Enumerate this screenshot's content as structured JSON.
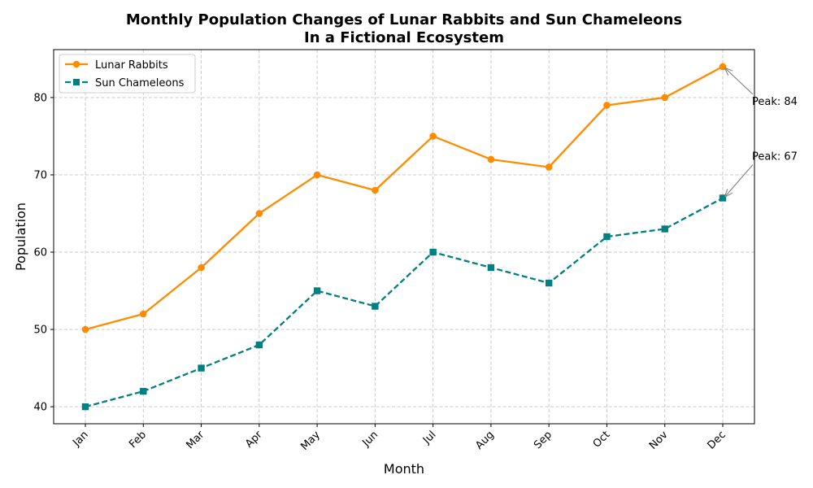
{
  "chart_data": {
    "type": "line",
    "title": "Monthly Population Changes of Lunar Rabbits and Sun Chameleons",
    "subtitle": "In a Fictional Ecosystem",
    "xlabel": "Month",
    "ylabel": "Population",
    "categories": [
      "Jan",
      "Feb",
      "Mar",
      "Apr",
      "May",
      "Jun",
      "Jul",
      "Aug",
      "Sep",
      "Oct",
      "Nov",
      "Dec"
    ],
    "ylim": [
      37.8,
      86.2
    ],
    "yticks": [
      40,
      50,
      60,
      70,
      80
    ],
    "grid": true,
    "legend_position": "top-left",
    "series": [
      {
        "name": "Lunar Rabbits",
        "color": "#ff8c00",
        "marker": "circle",
        "line_style": "solid",
        "values": [
          50,
          52,
          58,
          65,
          70,
          68,
          75,
          72,
          71,
          79,
          80,
          84
        ]
      },
      {
        "name": "Sun Chameleons",
        "color": "#008080",
        "marker": "square",
        "line_style": "dashed",
        "values": [
          40,
          42,
          45,
          48,
          55,
          53,
          60,
          58,
          56,
          62,
          63,
          67
        ]
      }
    ],
    "annotations": [
      {
        "text": "Peak: 84",
        "series": 0,
        "category": "Dec",
        "value": 84
      },
      {
        "text": "Peak: 67",
        "series": 1,
        "category": "Dec",
        "value": 67
      }
    ]
  }
}
